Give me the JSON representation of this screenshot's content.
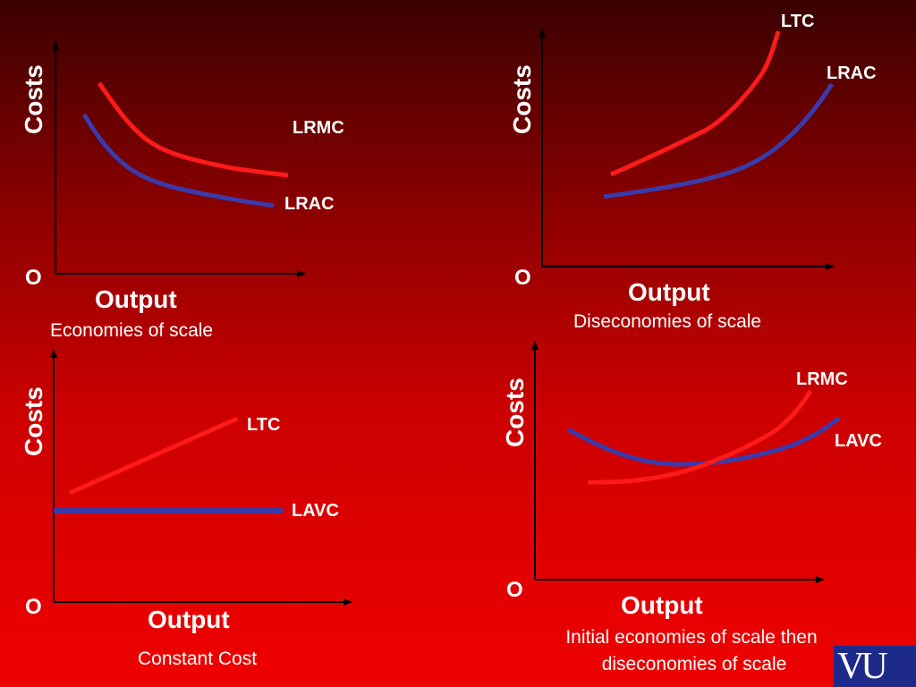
{
  "panels": [
    {
      "id": "economies",
      "y_axis_label": "Costs",
      "origin_label": "O",
      "x_axis_label": "Output",
      "caption": [
        "Economies of scale"
      ],
      "curves": [
        {
          "label": "LRMC",
          "color": "#ff1a1a"
        },
        {
          "label": "LRAC",
          "color": "#3a3aaa"
        }
      ]
    },
    {
      "id": "diseconomies",
      "y_axis_label": "Costs",
      "origin_label": "O",
      "x_axis_label": "Output",
      "caption": [
        "Diseconomies of scale"
      ],
      "curves": [
        {
          "label": "LTC",
          "color": "#ff1a1a"
        },
        {
          "label": "LRAC",
          "color": "#3a3aaa"
        }
      ]
    },
    {
      "id": "constant",
      "y_axis_label": "Costs",
      "origin_label": "O",
      "x_axis_label": "Output",
      "caption": [
        "Constant Cost"
      ],
      "curves": [
        {
          "label": "LTC",
          "color": "#ff1a1a"
        },
        {
          "label": "LAVC",
          "color": "#3a3aaa"
        }
      ]
    },
    {
      "id": "initial-then-diseconomies",
      "y_axis_label": "Costs",
      "origin_label": "O",
      "x_axis_label": "Output",
      "caption": [
        "Initial economies of scale then",
        "diseconomies of scale"
      ],
      "curves": [
        {
          "label": "LRMC",
          "color": "#ff1a1a"
        },
        {
          "label": "LAVC",
          "color": "#3a3aaa"
        }
      ]
    }
  ],
  "logo": {
    "text": "VU",
    "color": "#1e2a8a"
  }
}
